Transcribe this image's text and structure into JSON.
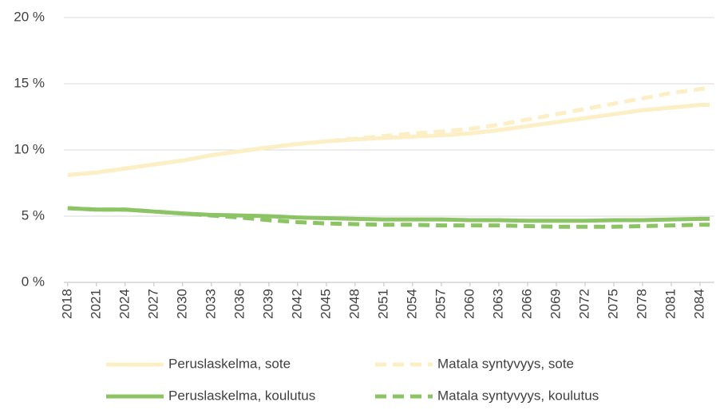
{
  "chart_data": {
    "type": "line",
    "x": [
      2018,
      2021,
      2024,
      2027,
      2030,
      2033,
      2036,
      2039,
      2042,
      2045,
      2048,
      2051,
      2054,
      2057,
      2060,
      2063,
      2066,
      2069,
      2072,
      2075,
      2078,
      2081,
      2084,
      2085
    ],
    "series": [
      {
        "name": "Peruslaskelma, sote",
        "color": "#fcefc6",
        "dash": false,
        "values": [
          8.1,
          8.3,
          8.6,
          8.9,
          9.2,
          9.6,
          9.9,
          10.2,
          10.45,
          10.65,
          10.8,
          10.9,
          11.0,
          11.1,
          11.25,
          11.5,
          11.8,
          12.1,
          12.4,
          12.7,
          13.0,
          13.2,
          13.4,
          13.4
        ]
      },
      {
        "name": "Matala syntyvyys, sote",
        "color": "#fcefc6",
        "dash": true,
        "values": [
          8.1,
          8.3,
          8.6,
          8.9,
          9.2,
          9.6,
          9.9,
          10.2,
          10.45,
          10.65,
          10.85,
          11.05,
          11.25,
          11.4,
          11.6,
          11.9,
          12.3,
          12.7,
          13.1,
          13.5,
          13.9,
          14.3,
          14.6,
          14.7
        ]
      },
      {
        "name": "Peruslaskelma, koulutus",
        "color": "#8cc465",
        "dash": false,
        "values": [
          5.6,
          5.5,
          5.5,
          5.35,
          5.2,
          5.1,
          5.05,
          5.0,
          4.9,
          4.85,
          4.8,
          4.75,
          4.75,
          4.75,
          4.7,
          4.7,
          4.65,
          4.65,
          4.65,
          4.7,
          4.7,
          4.75,
          4.8,
          4.8
        ]
      },
      {
        "name": "Matala syntyvyys, koulutus",
        "color": "#8cc465",
        "dash": true,
        "values": [
          5.6,
          5.5,
          5.5,
          5.35,
          5.2,
          5.05,
          4.9,
          4.7,
          4.55,
          4.45,
          4.4,
          4.35,
          4.35,
          4.3,
          4.3,
          4.3,
          4.25,
          4.2,
          4.2,
          4.2,
          4.25,
          4.3,
          4.35,
          4.35
        ]
      }
    ],
    "xlim": [
      2017.6,
      2085.5
    ],
    "xticks": [
      2018,
      2021,
      2024,
      2027,
      2030,
      2033,
      2036,
      2039,
      2042,
      2045,
      2048,
      2051,
      2054,
      2057,
      2060,
      2063,
      2066,
      2069,
      2072,
      2075,
      2078,
      2081,
      2084
    ],
    "ylim": [
      0,
      20
    ],
    "yticks": [
      {
        "value": 0,
        "label": "0 %"
      },
      {
        "value": 5,
        "label": "5 %"
      },
      {
        "value": 10,
        "label": "10 %"
      },
      {
        "value": 15,
        "label": "15 %"
      },
      {
        "value": 20,
        "label": "20 %"
      }
    ],
    "grid": true,
    "legend": "bottom"
  }
}
